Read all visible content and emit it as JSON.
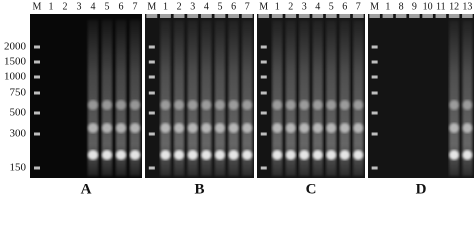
{
  "size_markers": [
    "2000",
    "1500",
    "1000",
    "750",
    "500",
    "300",
    "150"
  ],
  "panels": [
    {
      "letter": "A",
      "lanes": [
        "M",
        "1",
        "2",
        "3",
        "4",
        "5",
        "6",
        "7"
      ]
    },
    {
      "letter": "B",
      "lanes": [
        "M",
        "1",
        "2",
        "3",
        "4",
        "5",
        "6",
        "7"
      ]
    },
    {
      "letter": "C",
      "lanes": [
        "M",
        "1",
        "2",
        "3",
        "4",
        "5",
        "6",
        "7"
      ]
    },
    {
      "letter": "D",
      "lanes": [
        "M",
        "1",
        "8",
        "9",
        "10",
        "11",
        "12",
        "13"
      ]
    }
  ]
}
